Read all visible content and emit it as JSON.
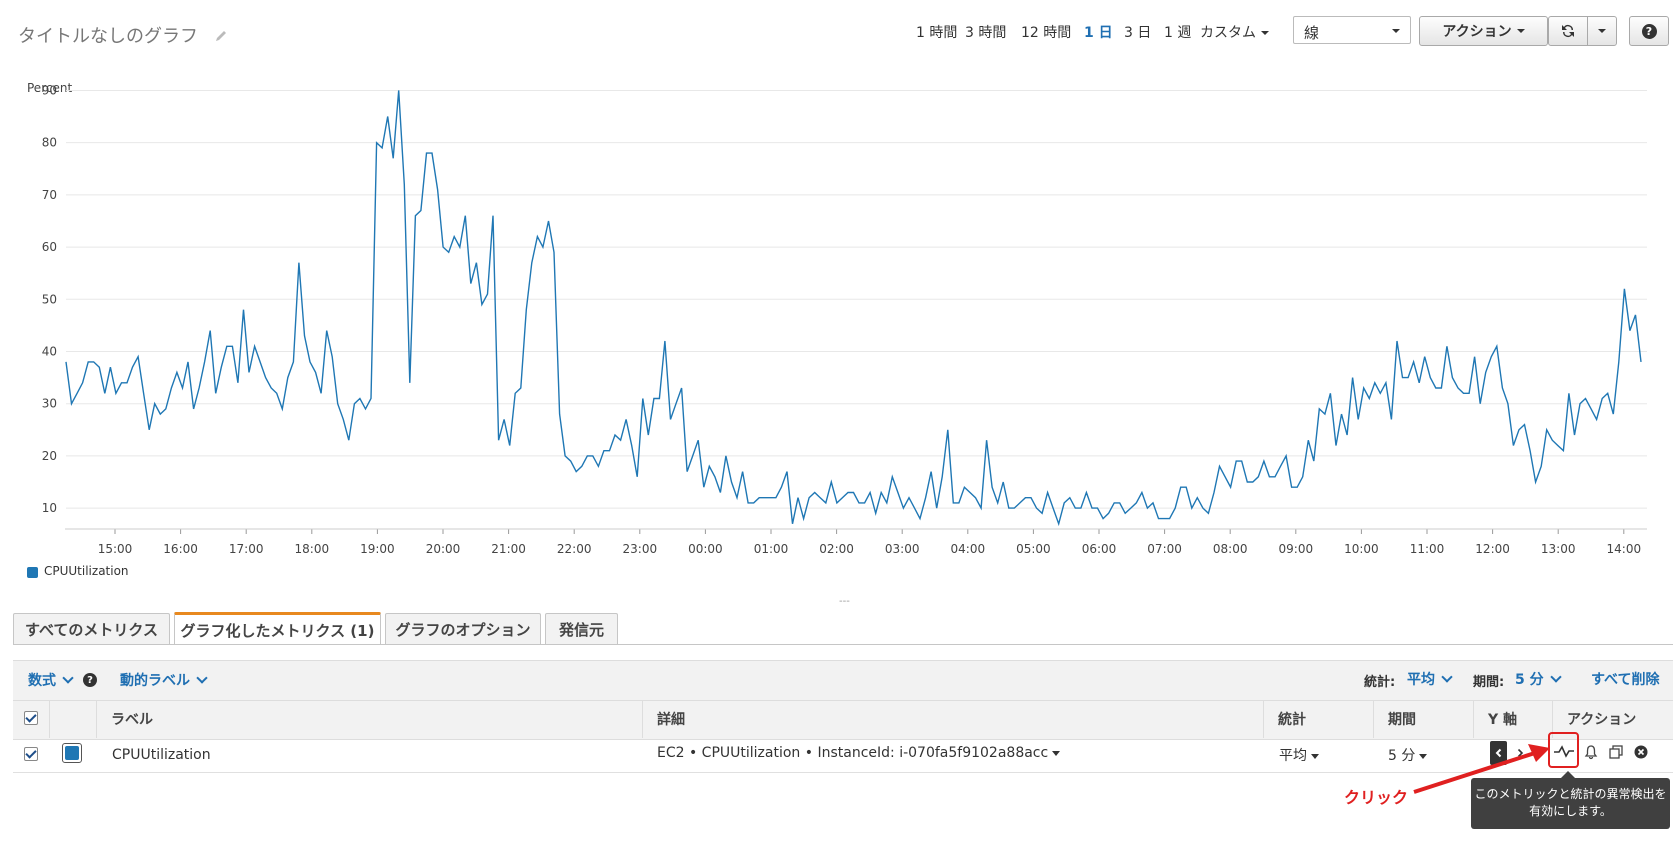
{
  "header": {
    "title": "タイトルなしのグラフ",
    "time_ranges": [
      "1 時間",
      "3 時間",
      "12 時間",
      "1 日",
      "3 日",
      "1 週"
    ],
    "active_range": "1 日",
    "custom_label": "カスタム",
    "view_select_value": "線",
    "actions_label": "アクション",
    "help_label": "?"
  },
  "chart_data": {
    "type": "line",
    "ylabel": "Percent",
    "ylim": [
      6,
      92
    ],
    "yticks": [
      10,
      20,
      30,
      40,
      50,
      60,
      70,
      80,
      90
    ],
    "xtick_labels": [
      "15:00",
      "16:00",
      "17:00",
      "18:00",
      "19:00",
      "20:00",
      "21:00",
      "22:00",
      "23:00",
      "00:00",
      "01:00",
      "02:00",
      "03:00",
      "04:00",
      "05:00",
      "06:00",
      "07:00",
      "08:00",
      "09:00",
      "10:00",
      "11:00",
      "12:00",
      "13:00",
      "14:00"
    ],
    "grid": true,
    "legend_position": "bottom-left",
    "color": "#1f77b4",
    "series": [
      {
        "name": "CPUUtilization",
        "values": [
          38,
          30,
          32,
          34,
          38,
          38,
          37,
          32,
          37,
          32,
          34,
          34,
          37,
          39,
          32,
          25,
          30,
          28,
          29,
          33,
          36,
          33,
          38,
          29,
          33,
          38,
          44,
          32,
          37,
          41,
          41,
          34,
          48,
          36,
          41,
          38,
          35,
          33,
          32,
          29,
          35,
          38,
          57,
          43,
          38,
          36,
          32,
          44,
          39,
          30,
          27,
          23,
          30,
          31,
          29,
          31,
          80,
          79,
          85,
          77,
          90,
          72,
          34,
          66,
          67,
          78,
          78,
          71,
          60,
          59,
          62,
          60,
          66,
          53,
          57,
          49,
          51,
          66,
          23,
          27,
          22,
          32,
          33,
          48,
          57,
          62,
          60,
          65,
          59,
          28,
          20,
          19,
          17,
          18,
          20,
          20,
          18,
          21,
          21,
          24,
          23,
          27,
          22,
          16,
          31,
          24,
          31,
          31,
          42,
          27,
          30,
          33,
          17,
          20,
          23,
          14,
          18,
          16,
          13,
          20,
          15,
          12,
          17,
          11,
          11,
          12,
          12,
          12,
          12,
          14,
          17,
          7,
          12,
          8,
          12,
          13,
          12,
          11,
          15,
          11,
          12,
          13,
          13,
          11,
          11,
          13,
          9,
          13,
          11,
          16,
          13,
          10,
          12,
          10,
          8,
          12,
          17,
          10,
          16,
          25,
          11,
          11,
          14,
          13,
          12,
          10,
          23,
          14,
          11,
          15,
          10,
          10,
          11,
          12,
          12,
          10,
          9,
          13,
          10,
          7,
          11,
          12,
          10,
          10,
          13,
          10,
          10,
          8,
          9,
          11,
          11,
          9,
          10,
          11,
          13,
          10,
          11,
          8,
          8,
          8,
          10,
          14,
          14,
          10,
          12,
          10,
          9,
          13,
          18,
          16,
          14,
          19,
          19,
          15,
          15,
          16,
          19,
          16,
          16,
          18,
          20,
          14,
          14,
          16,
          23,
          19,
          29,
          28,
          32,
          22,
          28,
          24,
          35,
          27,
          33,
          31,
          34,
          32,
          34,
          27,
          42,
          35,
          35,
          38,
          34,
          39,
          35,
          33,
          33,
          41,
          35,
          33,
          32,
          32,
          39,
          30,
          36,
          39,
          41,
          33,
          30,
          22,
          25,
          26,
          21,
          15,
          18,
          25,
          23,
          22,
          21,
          32,
          24,
          30,
          31,
          29,
          27,
          31,
          32,
          28,
          38,
          52,
          44,
          47,
          38
        ]
      }
    ]
  },
  "legend": {
    "label": "CPUUtilization",
    "color": "#1f77b4"
  },
  "tabs": [
    {
      "label": "すべてのメトリクス",
      "active": false
    },
    {
      "label": "グラフ化したメトリクス (1)",
      "active": true
    },
    {
      "label": "グラフのオプション",
      "active": false
    },
    {
      "label": "発信元",
      "active": false
    }
  ],
  "toolbar": {
    "math_label": "数式",
    "dynamic_label": "動的ラベル",
    "stat_label": "統計:",
    "stat_value": "平均",
    "period_label": "期間:",
    "period_value": "5 分",
    "remove_all": "すべて削除"
  },
  "table": {
    "headers": {
      "label": "ラベル",
      "details": "詳細",
      "stat": "統計",
      "period": "期間",
      "y_axis": "Y 軸",
      "actions": "アクション"
    },
    "row": {
      "label": "CPUUtilization",
      "details": "EC2 • CPUUtilization • InstanceId: i-070fa5f9102a88acc",
      "stat": "平均",
      "period": "5 分",
      "color": "#1f77b4"
    }
  },
  "tooltip": "このメトリックと統計の異常検出を有効にします。",
  "annotation": {
    "label": "クリック",
    "color": "#e02020"
  }
}
